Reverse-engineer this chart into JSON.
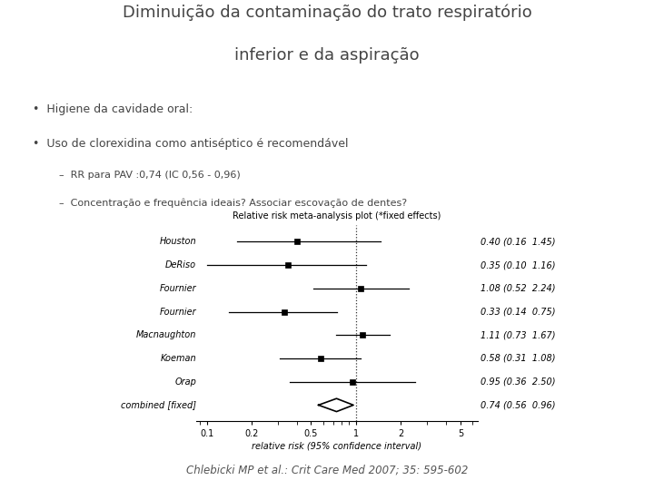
{
  "title_line1": "Diminuição da contaminação do trato respiratório",
  "title_line2": "inferior e da aspiração",
  "bullet1": "Higiene da cavidade oral:",
  "bullet2": "Uso de clorexidina como antiséptico é recomendável",
  "dash1": "RR para PAV :0,74 (IC 0,56 - 0,96)",
  "dash2": "Concentração e frequência ideais? Associar escovação de dentes?",
  "forest_title": "Relative risk meta-analysis plot (*fixed effects)",
  "citation": "Chlebicki MP et al.: Crit Care Med 2007; 35: 595-602",
  "studies": [
    "Houston",
    "DeRiso",
    "Fournier",
    "Fournier",
    "Macnaughton",
    "Koeman",
    "Orap",
    "combined [fixed]"
  ],
  "rr": [
    0.4,
    0.35,
    1.08,
    0.33,
    1.11,
    0.58,
    0.95,
    0.74
  ],
  "ci_lo": [
    0.16,
    0.1,
    0.52,
    0.14,
    0.73,
    0.31,
    0.36,
    0.56
  ],
  "ci_hi": [
    1.45,
    1.16,
    2.24,
    0.75,
    1.67,
    1.08,
    2.5,
    0.96
  ],
  "ci_labels": [
    "0.40 (0.16  1.45)",
    "0.35 (0.10  1.16)",
    "1.08 (0.52  2.24)",
    "0.33 (0.14  0.75)",
    "1.11 (0.73  1.67)",
    "0.58 (0.31  1.08)",
    "0.95 (0.36  2.50)",
    "0.74 (0.56  0.96)"
  ],
  "x_ticks": [
    0.1,
    0.2,
    0.5,
    1,
    2,
    5
  ],
  "x_tick_labels": [
    "0.1",
    "0.2",
    "0.5",
    "1",
    "2",
    "5"
  ],
  "x_label": "relative risk (95% confidence interval)",
  "bg_color": "#ffffff",
  "text_color": "#444444",
  "line_color": "#000000"
}
